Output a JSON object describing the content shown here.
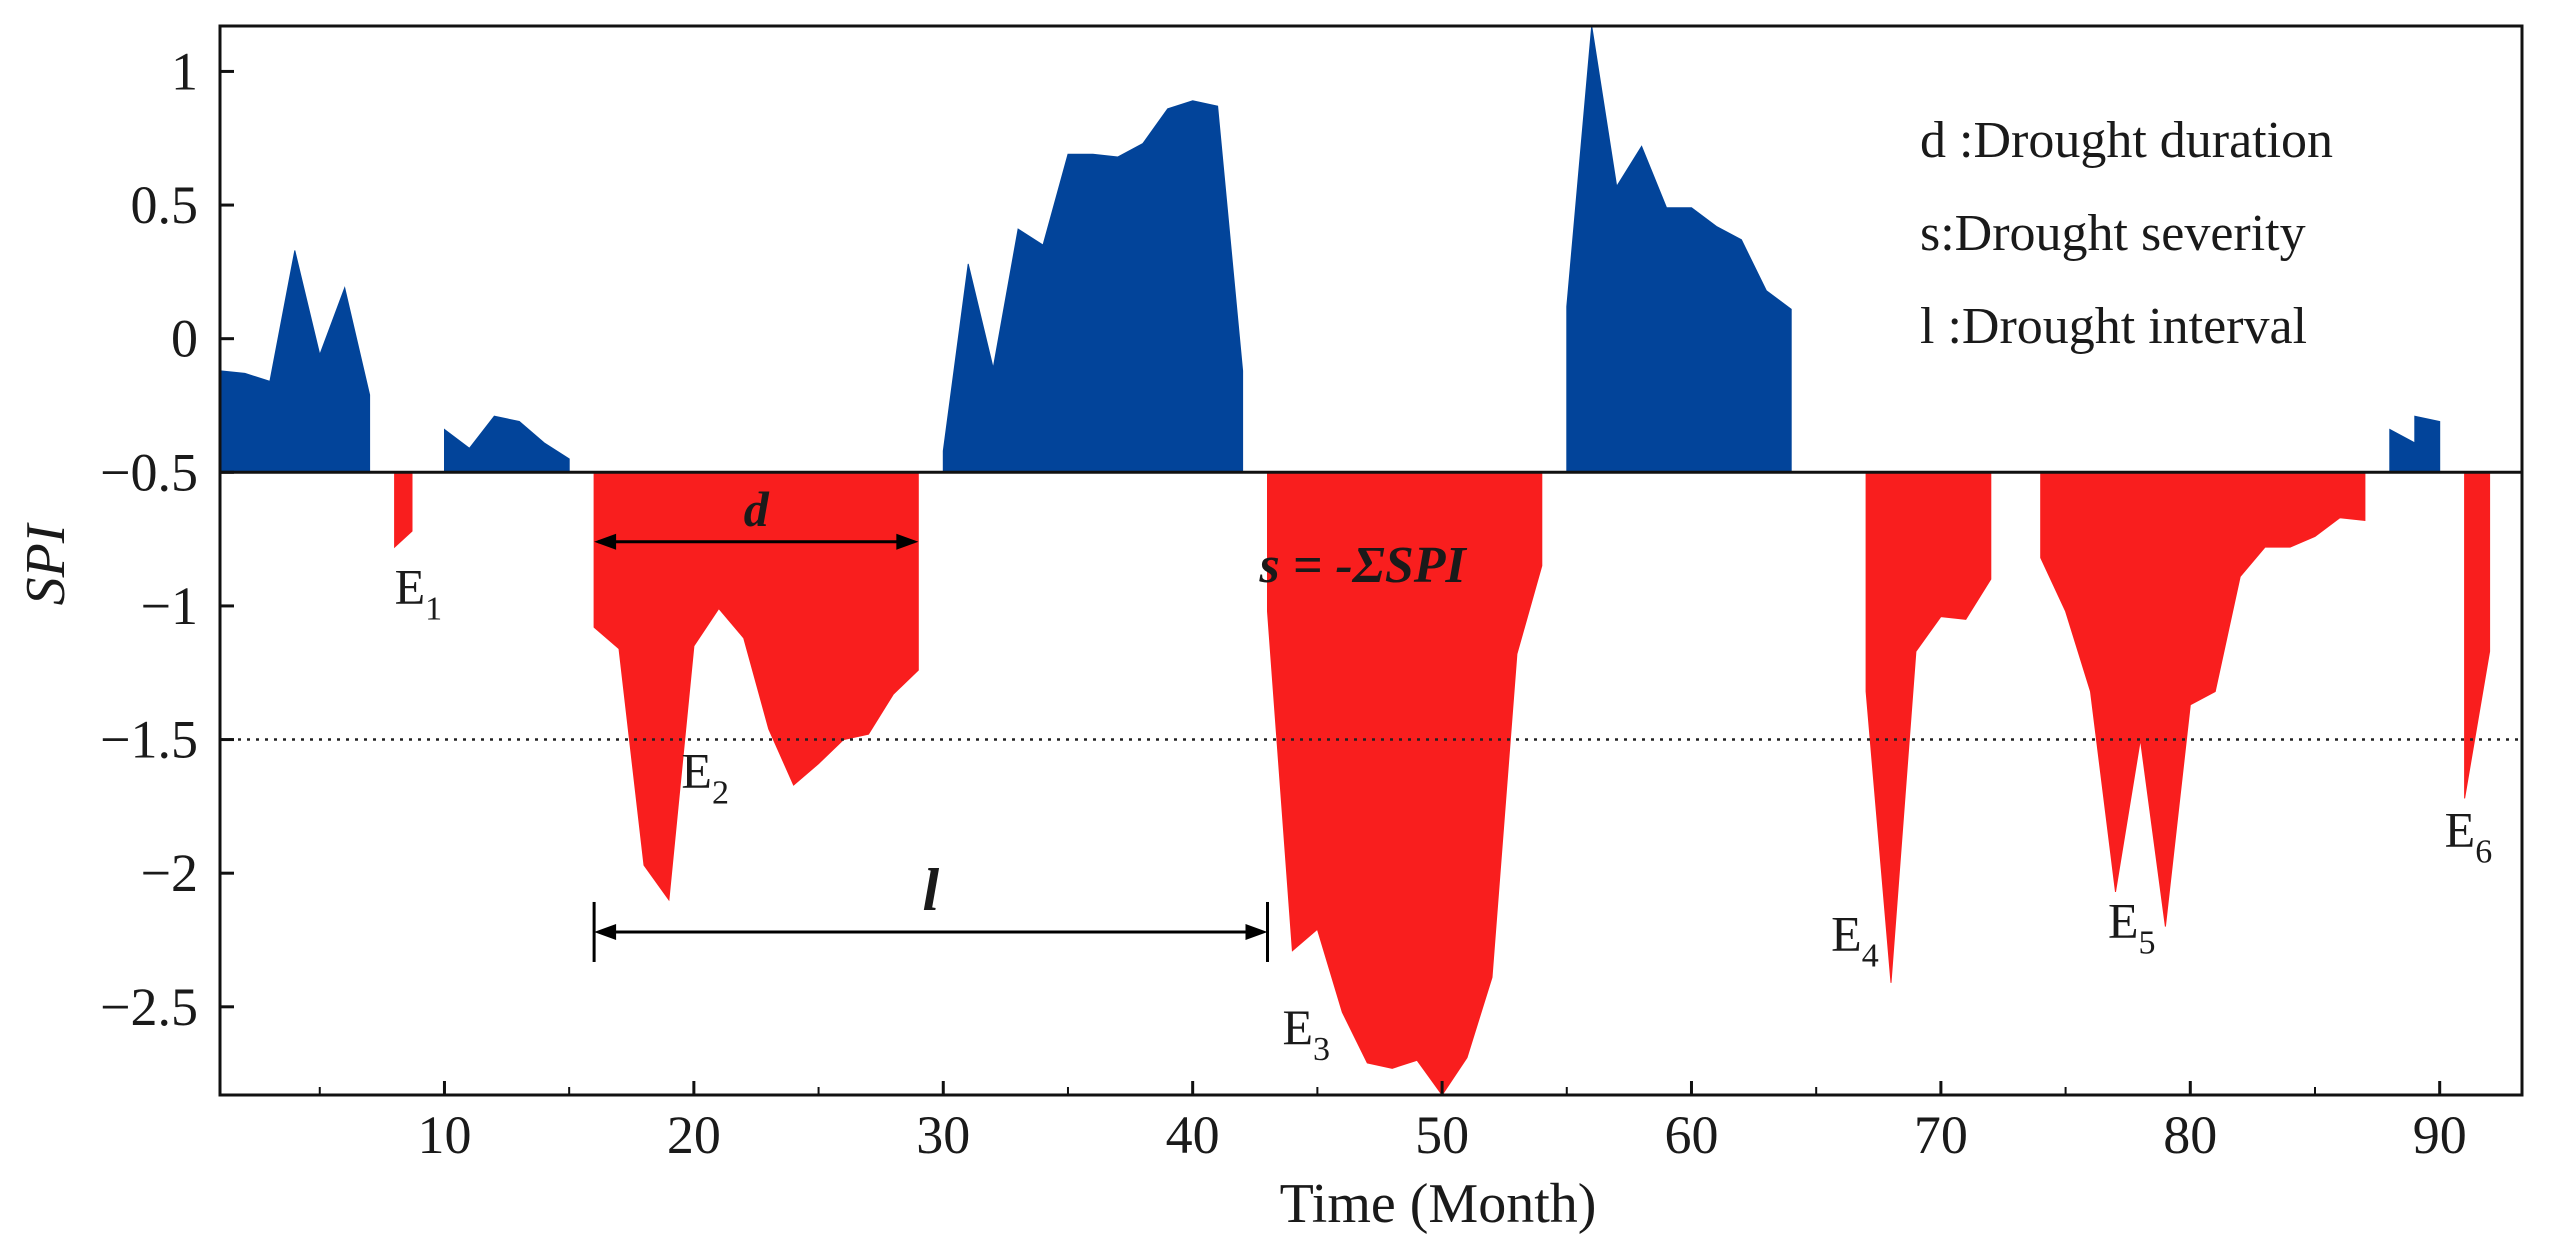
{
  "chart_data": {
    "type": "area",
    "xlabel": "Time (Month)",
    "ylabel": "SPI",
    "xlim": [
      1,
      93.3
    ],
    "ylim": [
      -2.83,
      1.17
    ],
    "xticks": [
      10,
      20,
      30,
      40,
      50,
      60,
      70,
      80,
      90
    ],
    "yticks": [
      1,
      0.5,
      0,
      -0.5,
      -1,
      -1.5,
      -2,
      -2.5
    ],
    "ytick_labels": [
      "1",
      "0.5",
      "0",
      "−0.5",
      "−1",
      "−1.5",
      "−2",
      "−2.5"
    ],
    "baseline": -0.5,
    "threshold_line": -1.5,
    "colors": {
      "wet": "#02449A",
      "dry": "#F91E1E",
      "axis": "#1a1a1a"
    },
    "wet_segments": [
      [
        [
          1,
          -0.12
        ],
        [
          2,
          -0.13
        ],
        [
          3,
          -0.16
        ],
        [
          4,
          0.33
        ],
        [
          5,
          -0.06
        ],
        [
          6,
          0.19
        ],
        [
          7,
          -0.21
        ],
        [
          7,
          -0.5
        ]
      ],
      [
        [
          10,
          -0.5
        ],
        [
          10,
          -0.34
        ],
        [
          11,
          -0.41
        ],
        [
          12,
          -0.29
        ],
        [
          13,
          -0.31
        ],
        [
          14,
          -0.39
        ],
        [
          15,
          -0.45
        ],
        [
          15,
          -0.5
        ]
      ],
      [
        [
          30,
          -0.5
        ],
        [
          30,
          -0.42
        ],
        [
          31,
          0.28
        ],
        [
          32,
          -0.11
        ],
        [
          33,
          0.41
        ],
        [
          34,
          0.35
        ],
        [
          35,
          0.69
        ],
        [
          36,
          0.69
        ],
        [
          37,
          0.68
        ],
        [
          38,
          0.73
        ],
        [
          39,
          0.86
        ],
        [
          40,
          0.89
        ],
        [
          41,
          0.87
        ],
        [
          42,
          -0.12
        ],
        [
          42,
          -0.5
        ]
      ],
      [
        [
          55,
          -0.5
        ],
        [
          55,
          0.12
        ],
        [
          56,
          1.17
        ],
        [
          57,
          0.57
        ],
        [
          58,
          0.72
        ],
        [
          59,
          0.49
        ],
        [
          60,
          0.49
        ],
        [
          61,
          0.42
        ],
        [
          62,
          0.37
        ],
        [
          63,
          0.18
        ],
        [
          64,
          0.11
        ],
        [
          64,
          -0.5
        ]
      ],
      [
        [
          88,
          -0.5
        ],
        [
          88,
          -0.34
        ],
        [
          89,
          -0.39
        ],
        [
          89,
          -0.29
        ],
        [
          90,
          -0.31
        ],
        [
          90,
          -0.5
        ]
      ]
    ],
    "dry_segments": [
      [
        [
          8,
          -0.5
        ],
        [
          8,
          -0.78
        ],
        [
          8.7,
          -0.72
        ],
        [
          8.7,
          -0.5
        ]
      ],
      [
        [
          16,
          -0.5
        ],
        [
          16,
          -1.08
        ],
        [
          17,
          -1.16
        ],
        [
          18,
          -1.97
        ],
        [
          19,
          -2.1
        ],
        [
          20,
          -1.15
        ],
        [
          21,
          -1.01
        ],
        [
          22,
          -1.12
        ],
        [
          23,
          -1.46
        ],
        [
          24,
          -1.67
        ],
        [
          25,
          -1.59
        ],
        [
          26,
          -1.5
        ],
        [
          27,
          -1.48
        ],
        [
          28,
          -1.33
        ],
        [
          29,
          -1.24
        ],
        [
          29,
          -0.5
        ]
      ],
      [
        [
          43,
          -0.5
        ],
        [
          43,
          -1.02
        ],
        [
          44,
          -2.29
        ],
        [
          45,
          -2.21
        ],
        [
          46,
          -2.52
        ],
        [
          47,
          -2.71
        ],
        [
          48,
          -2.73
        ],
        [
          49,
          -2.7
        ],
        [
          50,
          -2.83
        ],
        [
          51,
          -2.69
        ],
        [
          52,
          -2.39
        ],
        [
          53,
          -1.18
        ],
        [
          54,
          -0.85
        ],
        [
          54,
          -0.5
        ]
      ],
      [
        [
          67,
          -0.5
        ],
        [
          67,
          -1.32
        ],
        [
          68,
          -2.41
        ],
        [
          69,
          -1.17
        ],
        [
          70,
          -1.04
        ],
        [
          71,
          -1.05
        ],
        [
          72,
          -0.9
        ],
        [
          72,
          -0.5
        ]
      ],
      [
        [
          74,
          -0.5
        ],
        [
          74,
          -0.82
        ],
        [
          75,
          -1.02
        ],
        [
          76,
          -1.32
        ],
        [
          77,
          -2.07
        ],
        [
          78,
          -1.5
        ],
        [
          79,
          -2.2
        ],
        [
          80,
          -1.37
        ],
        [
          81,
          -1.32
        ],
        [
          82,
          -0.89
        ],
        [
          83,
          -0.78
        ],
        [
          84,
          -0.78
        ],
        [
          85,
          -0.74
        ],
        [
          86,
          -0.67
        ],
        [
          87,
          -0.68
        ],
        [
          87,
          -0.5
        ]
      ],
      [
        [
          91,
          -0.5
        ],
        [
          91,
          -1.72
        ],
        [
          92,
          -1.17
        ],
        [
          92,
          -0.5
        ]
      ]
    ],
    "legend": [
      "d :Drought duration",
      "s:Drought severity",
      "l :Drought interval"
    ],
    "event_labels": [
      {
        "base": "E",
        "sub": "1",
        "x": 8,
        "y": -0.99
      },
      {
        "base": "E",
        "sub": "2",
        "x": 19.5,
        "y": -1.68
      },
      {
        "base": "E",
        "sub": "3",
        "x": 43.6,
        "y": -2.64
      },
      {
        "base": "E",
        "sub": "4",
        "x": 65.6,
        "y": -2.29
      },
      {
        "base": "E",
        "sub": "5",
        "x": 76.7,
        "y": -2.24
      },
      {
        "base": "E",
        "sub": "6",
        "x": 90.2,
        "y": -1.9
      }
    ],
    "annotations": {
      "d": {
        "label": "d",
        "x_start": 16,
        "x_end": 29,
        "y": -0.76
      },
      "l": {
        "label": "l",
        "x_start": 16,
        "x_end": 43,
        "y": -2.22
      },
      "s": {
        "label": "s = -ΣSPI",
        "x": 43,
        "y": -0.76
      }
    }
  }
}
